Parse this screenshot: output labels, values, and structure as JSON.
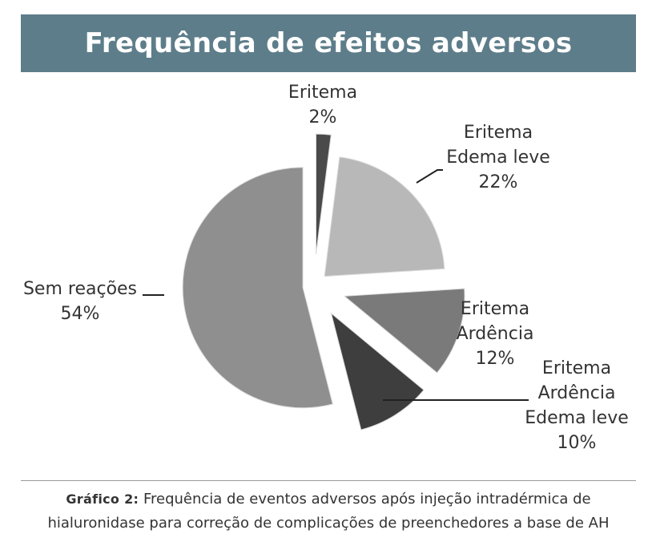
{
  "header": {
    "title": "Frequência de efeitos adversos"
  },
  "chart_data": {
    "type": "pie",
    "exploded": true,
    "slices": [
      {
        "label_lines": [
          "Eritema",
          "2%"
        ],
        "value": 2,
        "color": "#4a4a4a"
      },
      {
        "label_lines": [
          "Eritema",
          "Edema leve",
          "22%"
        ],
        "value": 22,
        "color": "#b8b8b8"
      },
      {
        "label_lines": [
          "Eritema",
          "Ardência",
          "12%"
        ],
        "value": 12,
        "color": "#7a7a7a"
      },
      {
        "label_lines": [
          "Eritema",
          "Ardência",
          "Edema leve",
          "10%"
        ],
        "value": 10,
        "color": "#3e3e3e"
      },
      {
        "label_lines": [
          "Sem reações",
          "54%"
        ],
        "value": 54,
        "color": "#8f8f8f"
      }
    ]
  },
  "caption": {
    "prefix": "Gráfico 2:",
    "line1": "Frequência de eventos adversos após injeção intradérmica de",
    "line2": "hialuronidase para correção de complicações de preenchedores a base de AH"
  }
}
